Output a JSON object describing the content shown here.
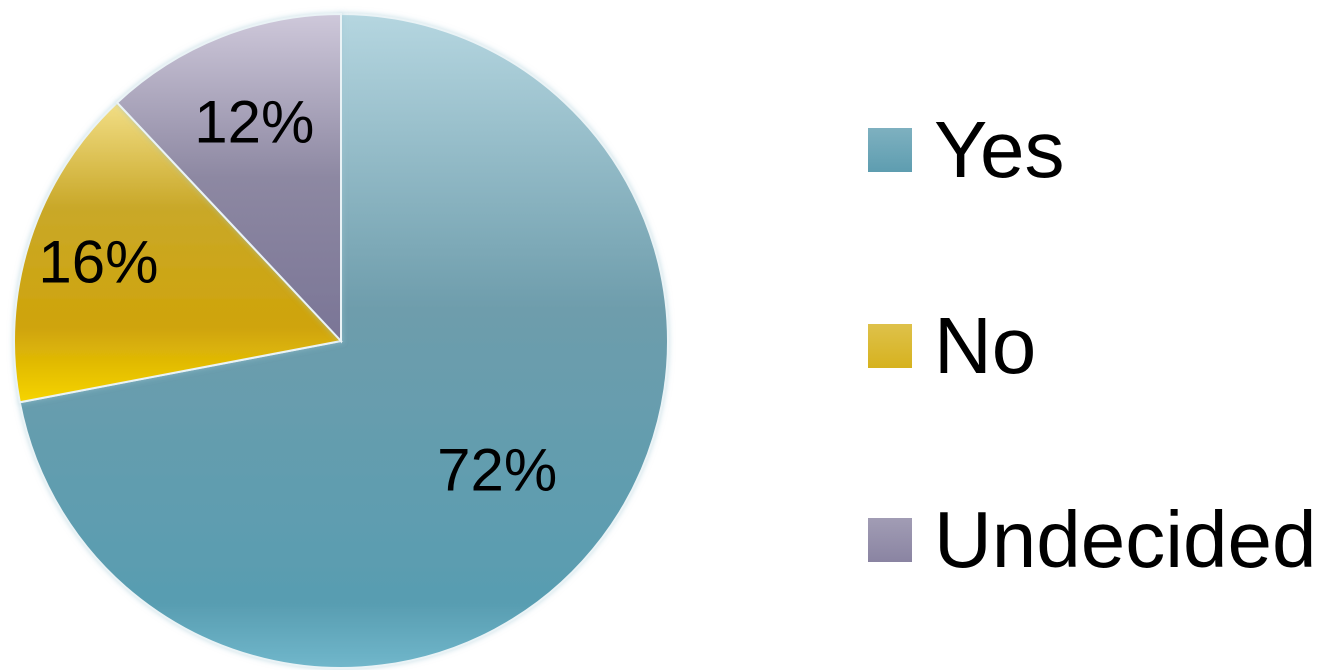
{
  "chart_data": {
    "type": "pie",
    "categories": [
      "Yes",
      "No",
      "Undecided"
    ],
    "values": [
      72,
      16,
      12
    ],
    "value_labels": [
      "72%",
      "16%",
      "12%"
    ],
    "colors": [
      "#5E9DB0",
      "#D6B21E",
      "#8A84A2"
    ],
    "legend_position": "right",
    "start": "top",
    "direction": "clockwise"
  }
}
